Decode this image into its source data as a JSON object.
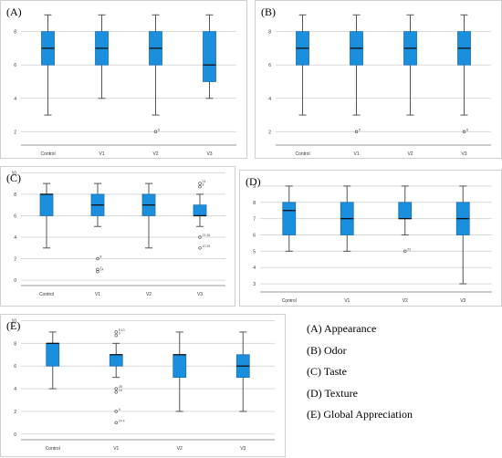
{
  "styles": {
    "box_fill": "#1a8fde",
    "box_stroke": "#1f6fb0",
    "grid": "#d9d9d9",
    "whisker": "#555555",
    "median": "#111111"
  },
  "legend": [
    "(A) Appearance",
    "(B) Odor",
    "(C) Taste",
    "(D) Texture",
    "(E) Global Appreciation"
  ],
  "chart_data": [
    {
      "type": "boxplot",
      "panel_label": "(A)",
      "categories": [
        "Control",
        "V1",
        "V2",
        "V3"
      ],
      "ylim": [
        1.2,
        9.4
      ],
      "yticks": [
        2,
        4,
        6,
        8
      ],
      "boxes": [
        {
          "min": 3,
          "q1": 6,
          "median": 7,
          "q3": 8,
          "max": 9
        },
        {
          "min": 4,
          "q1": 6,
          "median": 7,
          "q3": 8,
          "max": 9
        },
        {
          "min": 3,
          "q1": 6,
          "median": 7,
          "q3": 8,
          "max": 9
        },
        {
          "min": 4,
          "q1": 5,
          "median": 6,
          "q3": 8,
          "max": 9
        }
      ],
      "outliers": [
        {
          "cat": 2,
          "value": 2,
          "label": "8"
        }
      ]
    },
    {
      "type": "boxplot",
      "panel_label": "(B)",
      "categories": [
        "Control",
        "V1",
        "V2",
        "V3"
      ],
      "ylim": [
        1.2,
        9.4
      ],
      "yticks": [
        2,
        4,
        6,
        8
      ],
      "boxes": [
        {
          "min": 3,
          "q1": 6,
          "median": 7,
          "q3": 8,
          "max": 9
        },
        {
          "min": 3,
          "q1": 6,
          "median": 7,
          "q3": 8,
          "max": 9
        },
        {
          "min": 3,
          "q1": 6,
          "median": 7,
          "q3": 8,
          "max": 9
        },
        {
          "min": 3,
          "q1": 6,
          "median": 7,
          "q3": 8,
          "max": 9
        }
      ],
      "outliers": [
        {
          "cat": 1,
          "value": 2,
          "label": "5"
        },
        {
          "cat": 3,
          "value": 2,
          "label": "8"
        }
      ]
    },
    {
      "type": "boxplot",
      "panel_label": "(C)",
      "categories": [
        "Control",
        "V1",
        "V2",
        "V3"
      ],
      "ylim": [
        -0.5,
        10.2
      ],
      "yticks": [
        0,
        2,
        4,
        6,
        8,
        10
      ],
      "boxes": [
        {
          "min": 3,
          "q1": 6,
          "median": 8,
          "q3": 8,
          "max": 9
        },
        {
          "min": 5,
          "q1": 6,
          "median": 7,
          "q3": 8,
          "max": 9
        },
        {
          "min": 3,
          "q1": 6,
          "median": 7,
          "q3": 8,
          "max": 9
        },
        {
          "min": 5,
          "q1": 6,
          "median": 6,
          "q3": 7,
          "max": 8
        }
      ],
      "outliers": [
        {
          "cat": 1,
          "value": 2,
          "label": "8"
        },
        {
          "cat": 1,
          "value": 1,
          "label": "7"
        },
        {
          "cat": 1,
          "value": 0.8,
          "label": "14"
        },
        {
          "cat": 3,
          "value": 9,
          "label": "24"
        },
        {
          "cat": 3,
          "value": 8.7,
          "label": "8"
        },
        {
          "cat": 3,
          "value": 4,
          "label": "21 26"
        },
        {
          "cat": 3,
          "value": 3,
          "label": "10 29"
        }
      ]
    },
    {
      "type": "boxplot",
      "panel_label": "(D)",
      "categories": [
        "Control",
        "V1",
        "V2",
        "V3"
      ],
      "ylim": [
        2.5,
        9.5
      ],
      "yticks": [
        3,
        4,
        5,
        6,
        7,
        8,
        9
      ],
      "boxes": [
        {
          "min": 5,
          "q1": 6,
          "median": 7.5,
          "q3": 8,
          "max": 9
        },
        {
          "min": 5,
          "q1": 6,
          "median": 7,
          "q3": 8,
          "max": 9
        },
        {
          "min": 6,
          "q1": 7,
          "median": 7,
          "q3": 8,
          "max": 9
        },
        {
          "min": 3,
          "q1": 6,
          "median": 7,
          "q3": 8,
          "max": 9
        }
      ],
      "outliers": [
        {
          "cat": 2,
          "value": 5,
          "label": "22"
        }
      ]
    },
    {
      "type": "boxplot",
      "panel_label": "(E)",
      "categories": [
        "Control",
        "V1",
        "V2",
        "V3"
      ],
      "ylim": [
        -0.5,
        10.2
      ],
      "yticks": [
        0,
        2,
        4,
        6,
        8,
        10
      ],
      "boxes": [
        {
          "min": 4,
          "q1": 6,
          "median": 8,
          "q3": 8,
          "max": 9
        },
        {
          "min": 5,
          "q1": 6,
          "median": 7,
          "q3": 7,
          "max": 8
        },
        {
          "min": 2,
          "q1": 5,
          "median": 7,
          "q3": 7,
          "max": 9
        },
        {
          "min": 2,
          "q1": 5,
          "median": 6,
          "q3": 7,
          "max": 9
        }
      ],
      "outliers": [
        {
          "cat": 1,
          "value": 9,
          "label": "8 10"
        },
        {
          "cat": 1,
          "value": 8.7,
          "label": "9"
        },
        {
          "cat": 1,
          "value": 4,
          "label": "28"
        },
        {
          "cat": 1,
          "value": 3.7,
          "label": "16"
        },
        {
          "cat": 1,
          "value": 2,
          "label": "5"
        },
        {
          "cat": 1,
          "value": 1,
          "label": "24 4"
        }
      ]
    }
  ]
}
